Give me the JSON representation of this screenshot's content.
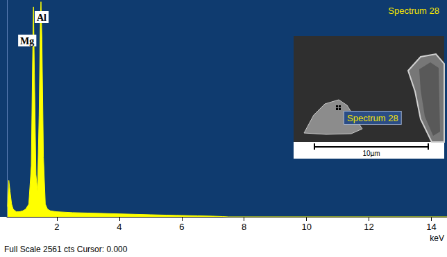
{
  "chart_data": {
    "type": "area",
    "title": "Spectrum 28",
    "x": [
      0.42,
      0.46,
      0.5,
      0.55,
      0.6,
      0.7,
      0.8,
      0.9,
      1.0,
      1.1,
      1.18,
      1.22,
      1.25,
      1.28,
      1.33,
      1.38,
      1.43,
      1.47,
      1.49,
      1.52,
      1.57,
      1.63,
      1.7,
      1.8,
      2.0,
      2.5,
      3.0,
      3.5,
      4.0,
      4.5,
      5.0,
      5.5,
      6.0,
      6.5,
      7.0,
      7.3,
      7.5,
      14.5
    ],
    "values": [
      120,
      430,
      300,
      150,
      90,
      60,
      60,
      70,
      90,
      150,
      600,
      1800,
      2480,
      1700,
      500,
      300,
      1200,
      2300,
      2540,
      2100,
      700,
      150,
      90,
      70,
      60,
      50,
      45,
      40,
      35,
      30,
      25,
      20,
      16,
      12,
      8,
      4,
      0,
      0
    ],
    "color": "#ffff00",
    "xlim": [
      0.4,
      14.5
    ],
    "xticks": [
      2,
      4,
      6,
      8,
      10,
      12,
      14
    ],
    "ylim": [
      0,
      2561
    ],
    "tick_labels": "x",
    "grid": false,
    "x_label": "keV",
    "footer": "Full Scale 2561 cts Cursor: 0.000",
    "annotations": [
      {
        "text": "Mg",
        "x": 1.25
      },
      {
        "text": "Al",
        "x": 1.49
      }
    ],
    "inset": {
      "label": "Spectrum 28",
      "scale_bar": "10µm"
    }
  }
}
